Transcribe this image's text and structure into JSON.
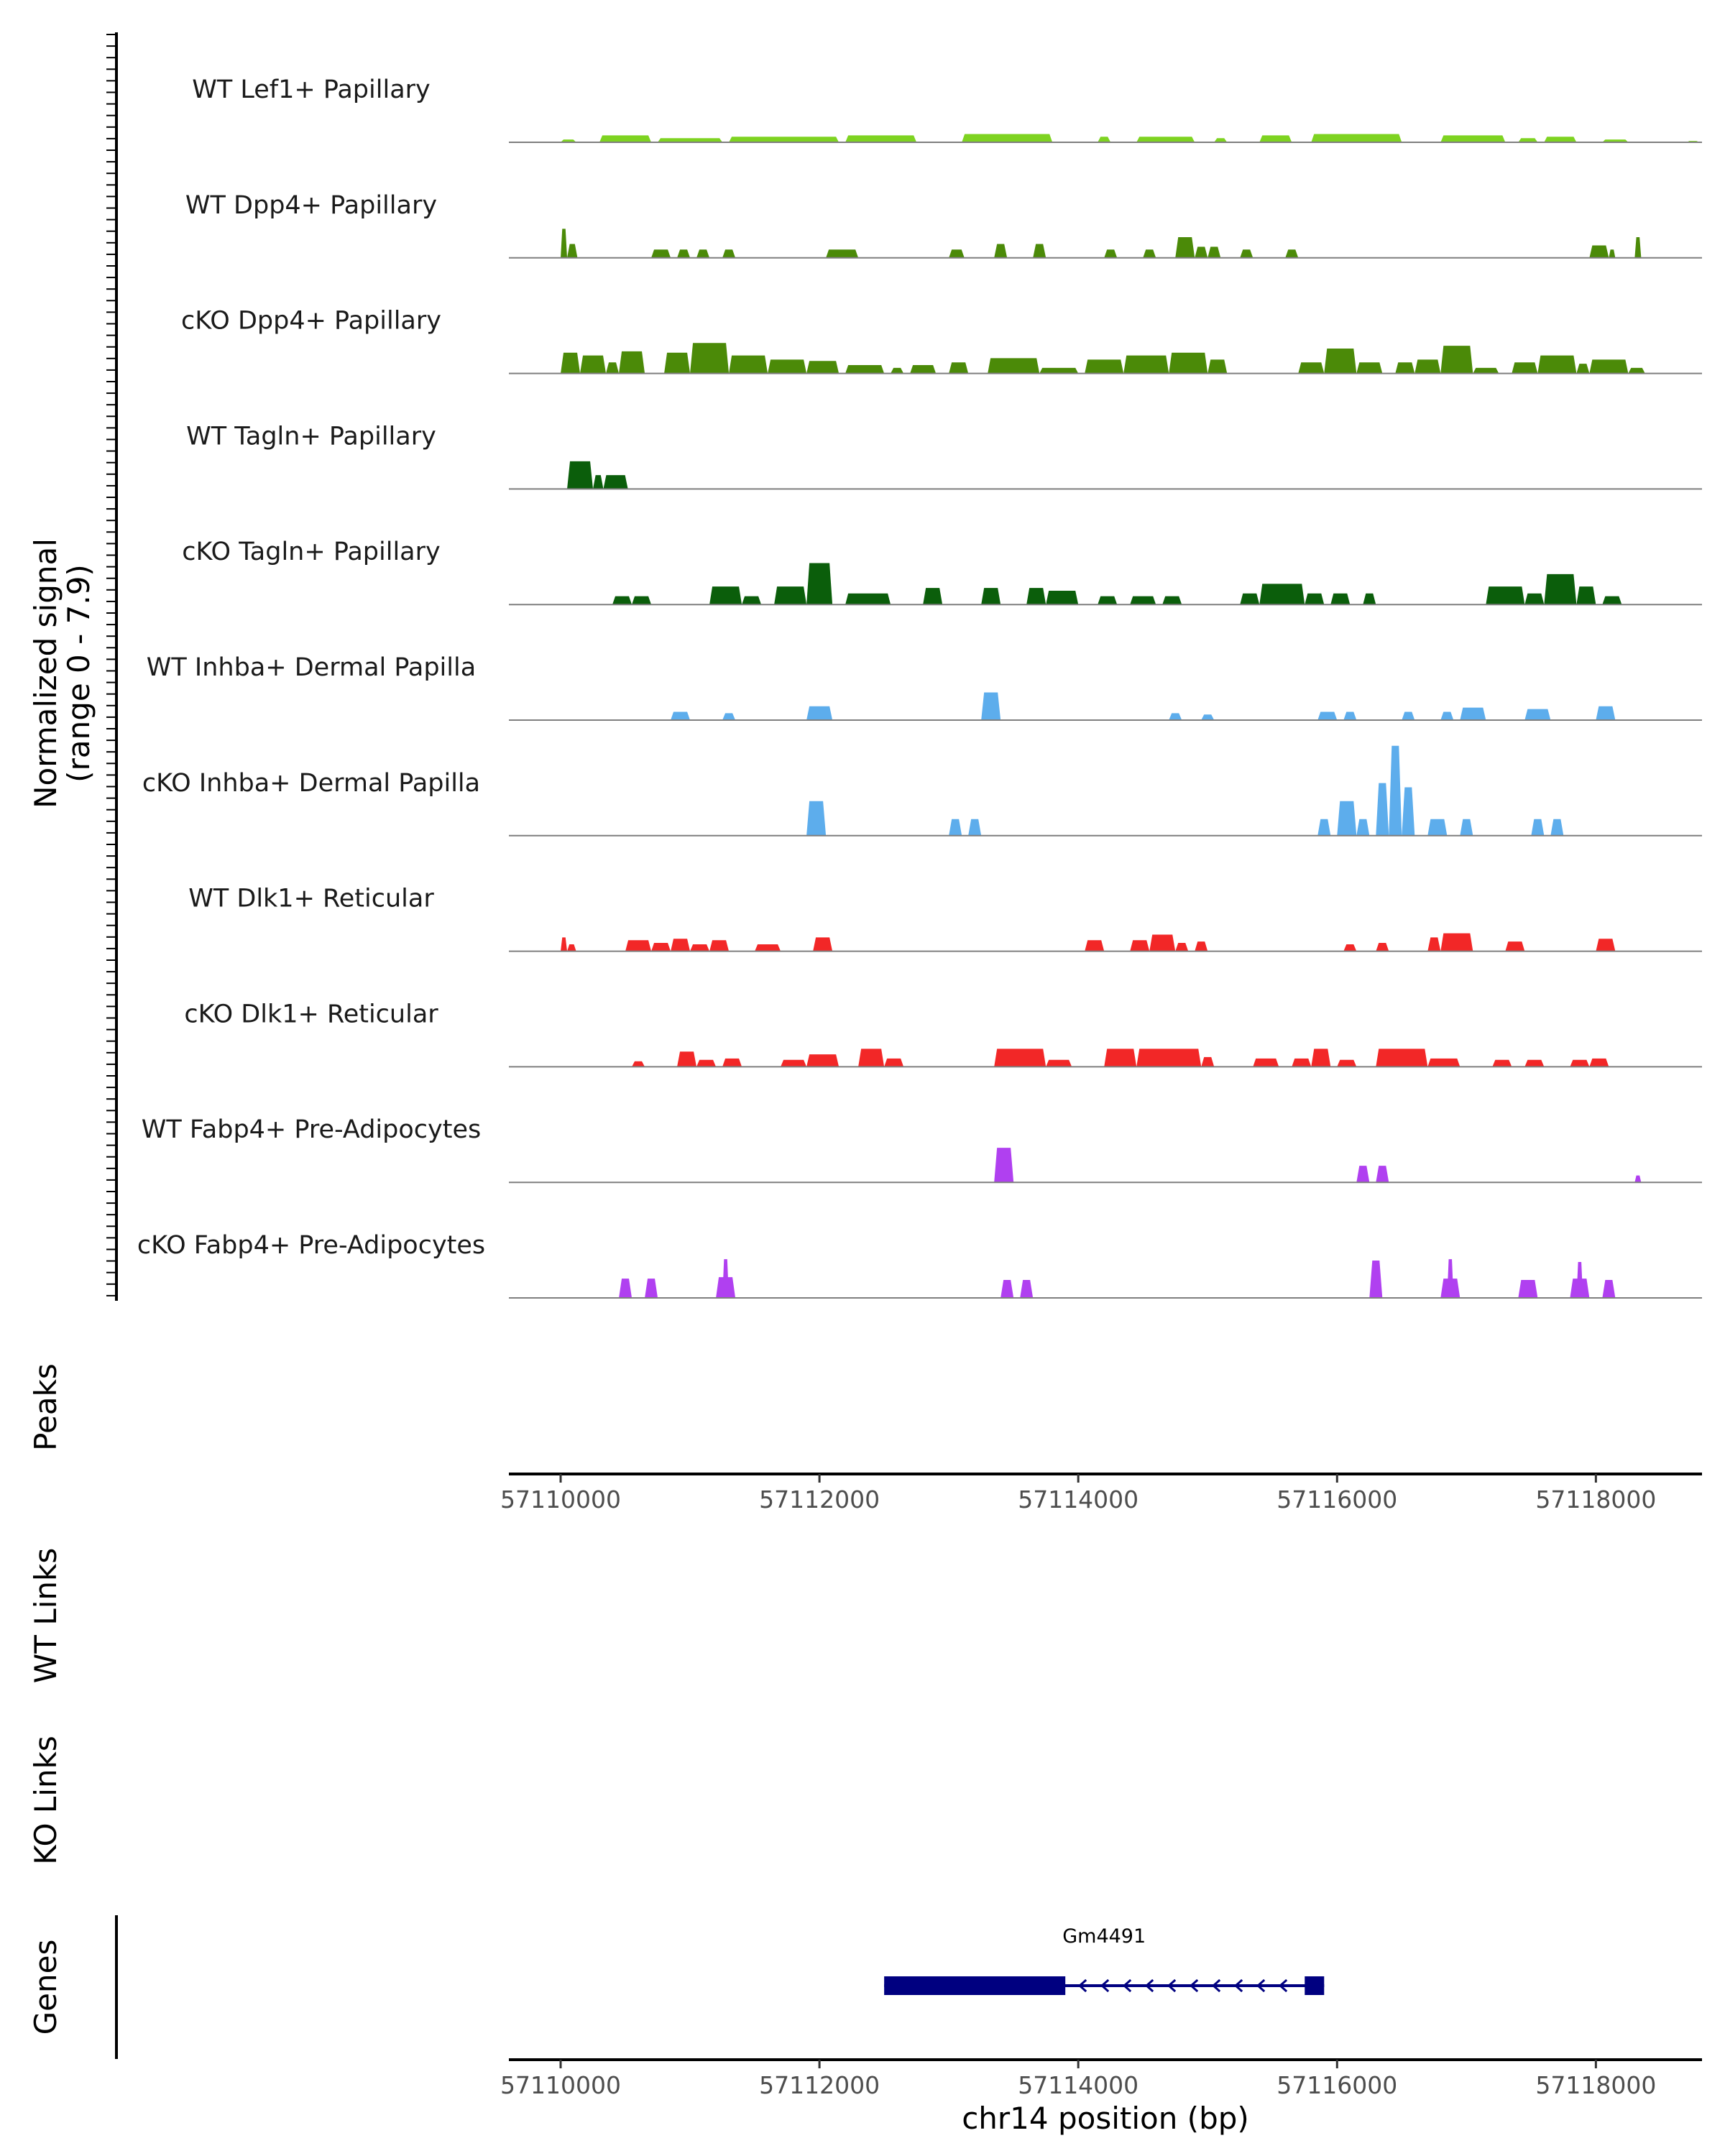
{
  "chart_data": {
    "type": "area",
    "subtype": "genome-coverage-tracks",
    "region": {
      "chromosome": "chr14",
      "start": 57109600,
      "end": 57118820
    },
    "signal_axis": {
      "label_line1": "Normalized signal",
      "label_line2": "(range 0 - 7.9)",
      "range": [
        0,
        7.9
      ]
    },
    "x_axis": {
      "label": "chr14 position (bp)",
      "ticks": [
        57110000,
        57112000,
        57114000,
        57116000,
        57118000
      ],
      "tick_labels": [
        "57110000",
        "57112000",
        "57114000",
        "57116000",
        "57118000"
      ]
    },
    "tracks": [
      {
        "name": "WT Lef1+ Papillary",
        "color": "#7ED321",
        "blocks": [
          [
            57110000,
            57110120,
            0.2
          ],
          [
            57110300,
            57110700,
            0.5
          ],
          [
            57110750,
            57111250,
            0.3
          ],
          [
            57111300,
            57112150,
            0.4
          ],
          [
            57112200,
            57112750,
            0.5
          ],
          [
            57113100,
            57113800,
            0.6
          ],
          [
            57114150,
            57114250,
            0.4
          ],
          [
            57114450,
            57114900,
            0.4
          ],
          [
            57115050,
            57115150,
            0.3
          ],
          [
            57115400,
            57115650,
            0.5
          ],
          [
            57115800,
            57116500,
            0.6
          ],
          [
            57116800,
            57117300,
            0.5
          ],
          [
            57117400,
            57117550,
            0.3
          ],
          [
            57117600,
            57117850,
            0.4
          ],
          [
            57118050,
            57118250,
            0.2
          ],
          [
            57118700,
            57118800,
            0.1
          ]
        ]
      },
      {
        "name": "WT Dpp4+ Papillary",
        "color": "#4B8A08",
        "blocks": [
          [
            57110000,
            57110050,
            2.1
          ],
          [
            57110050,
            57110130,
            1.0
          ],
          [
            57110700,
            57110850,
            0.6
          ],
          [
            57110900,
            57111000,
            0.6
          ],
          [
            57111050,
            57111150,
            0.6
          ],
          [
            57111250,
            57111350,
            0.6
          ],
          [
            57112050,
            57112300,
            0.6
          ],
          [
            57113000,
            57113120,
            0.6
          ],
          [
            57113350,
            57113450,
            1.0
          ],
          [
            57113650,
            57113750,
            1.0
          ],
          [
            57114200,
            57114300,
            0.6
          ],
          [
            57114500,
            57114600,
            0.6
          ],
          [
            57114750,
            57114900,
            1.5
          ],
          [
            57114900,
            57115000,
            0.8
          ],
          [
            57115000,
            57115100,
            0.8
          ],
          [
            57115250,
            57115350,
            0.6
          ],
          [
            57115600,
            57115700,
            0.6
          ],
          [
            57117950,
            57118100,
            0.9
          ],
          [
            57118100,
            57118150,
            0.6
          ],
          [
            57118300,
            57118350,
            1.5
          ]
        ]
      },
      {
        "name": "cKO Dpp4+ Papillary",
        "color": "#4B8A08",
        "blocks": [
          [
            57110000,
            57110150,
            1.5
          ],
          [
            57110150,
            57110350,
            1.3
          ],
          [
            57110350,
            57110450,
            0.8
          ],
          [
            57110450,
            57110650,
            1.6
          ],
          [
            57110800,
            57111000,
            1.5
          ],
          [
            57111000,
            57111300,
            2.2
          ],
          [
            57111300,
            57111600,
            1.3
          ],
          [
            57111600,
            57111900,
            1.0
          ],
          [
            57111900,
            57112150,
            0.9
          ],
          [
            57112200,
            57112500,
            0.6
          ],
          [
            57112550,
            57112650,
            0.4
          ],
          [
            57112700,
            57112900,
            0.6
          ],
          [
            57113000,
            57113150,
            0.8
          ],
          [
            57113300,
            57113700,
            1.1
          ],
          [
            57113700,
            57114000,
            0.4
          ],
          [
            57114050,
            57114350,
            1.0
          ],
          [
            57114350,
            57114700,
            1.3
          ],
          [
            57114700,
            57115000,
            1.5
          ],
          [
            57115000,
            57115150,
            1.0
          ],
          [
            57115700,
            57115900,
            0.8
          ],
          [
            57115900,
            57116150,
            1.8
          ],
          [
            57116150,
            57116350,
            0.8
          ],
          [
            57116450,
            57116600,
            0.8
          ],
          [
            57116600,
            57116800,
            1.0
          ],
          [
            57116800,
            57117050,
            2.0
          ],
          [
            57117050,
            57117250,
            0.4
          ],
          [
            57117350,
            57117550,
            0.8
          ],
          [
            57117550,
            57117850,
            1.3
          ],
          [
            57117850,
            57117950,
            0.7
          ],
          [
            57117950,
            57118250,
            1.0
          ],
          [
            57118250,
            57118380,
            0.4
          ]
        ]
      },
      {
        "name": "WT Tagln+ Papillary",
        "color": "#0B5E0B",
        "blocks": [
          [
            57110050,
            57110250,
            2.0
          ],
          [
            57110250,
            57110330,
            1.0
          ],
          [
            57110330,
            57110520,
            1.0
          ]
        ]
      },
      {
        "name": "cKO Tagln+ Papillary",
        "color": "#0B5E0B",
        "blocks": [
          [
            57110400,
            57110550,
            0.6
          ],
          [
            57110550,
            57110700,
            0.6
          ],
          [
            57111150,
            57111400,
            1.3
          ],
          [
            57111400,
            57111550,
            0.6
          ],
          [
            57111650,
            57111900,
            1.3
          ],
          [
            57111900,
            57112100,
            3.0
          ],
          [
            57112200,
            57112550,
            0.8
          ],
          [
            57112800,
            57112950,
            1.2
          ],
          [
            57113250,
            57113400,
            1.2
          ],
          [
            57113600,
            57113750,
            1.2
          ],
          [
            57113750,
            57114000,
            1.0
          ],
          [
            57114150,
            57114300,
            0.6
          ],
          [
            57114400,
            57114600,
            0.6
          ],
          [
            57114650,
            57114800,
            0.6
          ],
          [
            57115250,
            57115400,
            0.8
          ],
          [
            57115400,
            57115750,
            1.5
          ],
          [
            57115750,
            57115900,
            0.8
          ],
          [
            57115950,
            57116100,
            0.8
          ],
          [
            57116200,
            57116300,
            0.8
          ],
          [
            57117150,
            57117450,
            1.3
          ],
          [
            57117450,
            57117600,
            0.8
          ],
          [
            57117600,
            57117850,
            2.2
          ],
          [
            57117850,
            57118000,
            1.3
          ],
          [
            57118050,
            57118200,
            0.6
          ]
        ]
      },
      {
        "name": "WT Inhba+ Dermal Papilla",
        "color": "#5DADEC",
        "blocks": [
          [
            57110850,
            57111000,
            0.6
          ],
          [
            57111250,
            57111350,
            0.5
          ],
          [
            57111900,
            57112100,
            1.0
          ],
          [
            57113250,
            57113400,
            2.0
          ],
          [
            57114700,
            57114800,
            0.5
          ],
          [
            57114950,
            57115050,
            0.4
          ],
          [
            57115850,
            57116000,
            0.6
          ],
          [
            57116050,
            57116150,
            0.6
          ],
          [
            57116500,
            57116600,
            0.6
          ],
          [
            57116800,
            57116900,
            0.6
          ],
          [
            57116950,
            57117150,
            0.9
          ],
          [
            57117450,
            57117650,
            0.8
          ],
          [
            57118000,
            57118150,
            1.0
          ]
        ]
      },
      {
        "name": "cKO Inhba+ Dermal Papilla",
        "color": "#5DADEC",
        "blocks": [
          [
            57111900,
            57112050,
            2.5
          ],
          [
            57113000,
            57113100,
            1.2
          ],
          [
            57113150,
            57113250,
            1.2
          ],
          [
            57115850,
            57115950,
            1.2
          ],
          [
            57116000,
            57116150,
            2.5
          ],
          [
            57116150,
            57116250,
            1.2
          ],
          [
            57116300,
            57116400,
            3.8
          ],
          [
            57116400,
            57116500,
            6.5
          ],
          [
            57116500,
            57116600,
            3.5
          ],
          [
            57116700,
            57116850,
            1.2
          ],
          [
            57116950,
            57117050,
            1.2
          ],
          [
            57117500,
            57117600,
            1.2
          ],
          [
            57117650,
            57117750,
            1.2
          ]
        ]
      },
      {
        "name": "WT Dlk1+ Reticular",
        "color": "#F22727",
        "blocks": [
          [
            57110000,
            57110050,
            1.0
          ],
          [
            57110050,
            57110120,
            0.5
          ],
          [
            57110500,
            57110700,
            0.8
          ],
          [
            57110700,
            57110850,
            0.6
          ],
          [
            57110850,
            57111000,
            0.9
          ],
          [
            57111000,
            57111150,
            0.5
          ],
          [
            57111150,
            57111300,
            0.8
          ],
          [
            57111500,
            57111700,
            0.5
          ],
          [
            57111950,
            57112100,
            1.0
          ],
          [
            57114050,
            57114200,
            0.8
          ],
          [
            57114400,
            57114550,
            0.8
          ],
          [
            57114550,
            57114750,
            1.2
          ],
          [
            57114750,
            57114850,
            0.6
          ],
          [
            57114900,
            57115000,
            0.7
          ],
          [
            57116050,
            57116150,
            0.5
          ],
          [
            57116300,
            57116400,
            0.6
          ],
          [
            57116700,
            57116800,
            1.0
          ],
          [
            57116800,
            57117050,
            1.3
          ],
          [
            57117300,
            57117450,
            0.7
          ],
          [
            57118000,
            57118150,
            0.9
          ]
        ]
      },
      {
        "name": "cKO Dlk1+ Reticular",
        "color": "#F22727",
        "blocks": [
          [
            57110550,
            57110650,
            0.4
          ],
          [
            57110900,
            57111050,
            1.1
          ],
          [
            57111050,
            57111200,
            0.5
          ],
          [
            57111250,
            57111400,
            0.6
          ],
          [
            57111700,
            57111900,
            0.5
          ],
          [
            57111900,
            57112150,
            0.9
          ],
          [
            57112300,
            57112500,
            1.3
          ],
          [
            57112500,
            57112650,
            0.6
          ],
          [
            57113350,
            57113750,
            1.3
          ],
          [
            57113750,
            57113950,
            0.5
          ],
          [
            57114200,
            57114450,
            1.3
          ],
          [
            57114450,
            57114950,
            1.3
          ],
          [
            57114950,
            57115050,
            0.7
          ],
          [
            57115350,
            57115550,
            0.6
          ],
          [
            57115650,
            57115800,
            0.6
          ],
          [
            57115800,
            57115950,
            1.3
          ],
          [
            57116000,
            57116150,
            0.5
          ],
          [
            57116300,
            57116700,
            1.3
          ],
          [
            57116700,
            57116950,
            0.6
          ],
          [
            57117200,
            57117350,
            0.5
          ],
          [
            57117450,
            57117600,
            0.5
          ],
          [
            57117800,
            57117950,
            0.5
          ],
          [
            57117950,
            57118100,
            0.6
          ]
        ]
      },
      {
        "name": "WT Fabp4+ Pre-Adipocytes",
        "color": "#B040F0",
        "blocks": [
          [
            57113350,
            57113500,
            2.5
          ],
          [
            57116150,
            57116250,
            1.2
          ],
          [
            57116300,
            57116400,
            1.2
          ],
          [
            57118300,
            57118350,
            0.5
          ]
        ]
      },
      {
        "name": "cKO Fabp4+ Pre-Adipocytes",
        "color": "#B040F0",
        "blocks": [
          [
            57110450,
            57110550,
            1.4
          ],
          [
            57110650,
            57110750,
            1.4
          ],
          [
            57111200,
            57111350,
            1.5
          ],
          [
            57111250,
            57111300,
            2.8
          ],
          [
            57113400,
            57113500,
            1.3
          ],
          [
            57113550,
            57113650,
            1.3
          ],
          [
            57116250,
            57116350,
            2.7
          ],
          [
            57116800,
            57116950,
            1.4
          ],
          [
            57116850,
            57116900,
            2.8
          ],
          [
            57117400,
            57117550,
            1.3
          ],
          [
            57117800,
            57117950,
            1.4
          ],
          [
            57117850,
            57117900,
            2.6
          ],
          [
            57118050,
            57118150,
            1.3
          ]
        ]
      }
    ],
    "panels": {
      "peaks_label": "Peaks",
      "wt_links_label": "WT Links",
      "ko_links_label": "KO Links",
      "genes_label": "Genes"
    },
    "genes": [
      {
        "name": "Gm4491",
        "strand": "-",
        "start": 57112500,
        "end": 57115900,
        "thick_start": 57112500,
        "thick_end": 57113900,
        "exon_start": 57115750,
        "exon_end": 57115900,
        "color": "#000080"
      }
    ]
  }
}
